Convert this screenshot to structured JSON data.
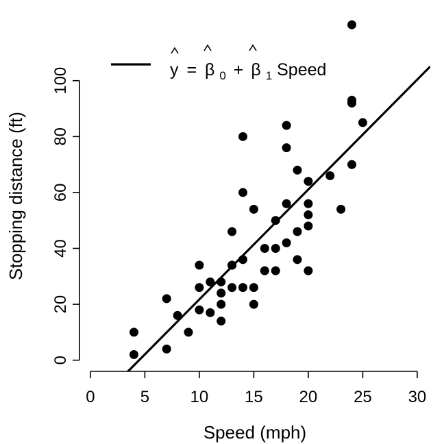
{
  "chart_data": {
    "type": "scatter",
    "xlabel": "Speed (mph)",
    "ylabel": "Stopping distance (ft)",
    "xlim": [
      -1,
      31.2
    ],
    "ylim": [
      -4,
      122
    ],
    "xticks": [
      0,
      5,
      10,
      15,
      20,
      25,
      30
    ],
    "yticks": [
      0,
      20,
      40,
      60,
      80,
      100
    ],
    "grid": false,
    "legend_position": "top-left",
    "legend": {
      "y": "y",
      "eq": "=",
      "b": "β",
      "sub0": "0",
      "plus": "+",
      "sub1": "1",
      "term": "Speed"
    },
    "points": [
      {
        "x": 4,
        "y": 2
      },
      {
        "x": 4,
        "y": 10
      },
      {
        "x": 7,
        "y": 4
      },
      {
        "x": 7,
        "y": 22
      },
      {
        "x": 8,
        "y": 16
      },
      {
        "x": 9,
        "y": 10
      },
      {
        "x": 10,
        "y": 18
      },
      {
        "x": 10,
        "y": 26
      },
      {
        "x": 10,
        "y": 34
      },
      {
        "x": 11,
        "y": 17
      },
      {
        "x": 11,
        "y": 28
      },
      {
        "x": 12,
        "y": 14
      },
      {
        "x": 12,
        "y": 20
      },
      {
        "x": 12,
        "y": 24
      },
      {
        "x": 12,
        "y": 28
      },
      {
        "x": 13,
        "y": 26
      },
      {
        "x": 13,
        "y": 34
      },
      {
        "x": 13,
        "y": 34
      },
      {
        "x": 13,
        "y": 46
      },
      {
        "x": 14,
        "y": 26
      },
      {
        "x": 14,
        "y": 36
      },
      {
        "x": 14,
        "y": 60
      },
      {
        "x": 14,
        "y": 80
      },
      {
        "x": 15,
        "y": 20
      },
      {
        "x": 15,
        "y": 26
      },
      {
        "x": 15,
        "y": 54
      },
      {
        "x": 16,
        "y": 32
      },
      {
        "x": 16,
        "y": 40
      },
      {
        "x": 17,
        "y": 32
      },
      {
        "x": 17,
        "y": 40
      },
      {
        "x": 17,
        "y": 50
      },
      {
        "x": 18,
        "y": 42
      },
      {
        "x": 18,
        "y": 56
      },
      {
        "x": 18,
        "y": 76
      },
      {
        "x": 18,
        "y": 84
      },
      {
        "x": 19,
        "y": 36
      },
      {
        "x": 19,
        "y": 46
      },
      {
        "x": 19,
        "y": 68
      },
      {
        "x": 20,
        "y": 32
      },
      {
        "x": 20,
        "y": 48
      },
      {
        "x": 20,
        "y": 52
      },
      {
        "x": 20,
        "y": 56
      },
      {
        "x": 20,
        "y": 64
      },
      {
        "x": 22,
        "y": 66
      },
      {
        "x": 23,
        "y": 54
      },
      {
        "x": 24,
        "y": 70
      },
      {
        "x": 24,
        "y": 92
      },
      {
        "x": 24,
        "y": 93
      },
      {
        "x": 24,
        "y": 120
      },
      {
        "x": 25,
        "y": 85
      }
    ],
    "regression": {
      "intercept": -17.579,
      "slope": 3.932
    }
  }
}
